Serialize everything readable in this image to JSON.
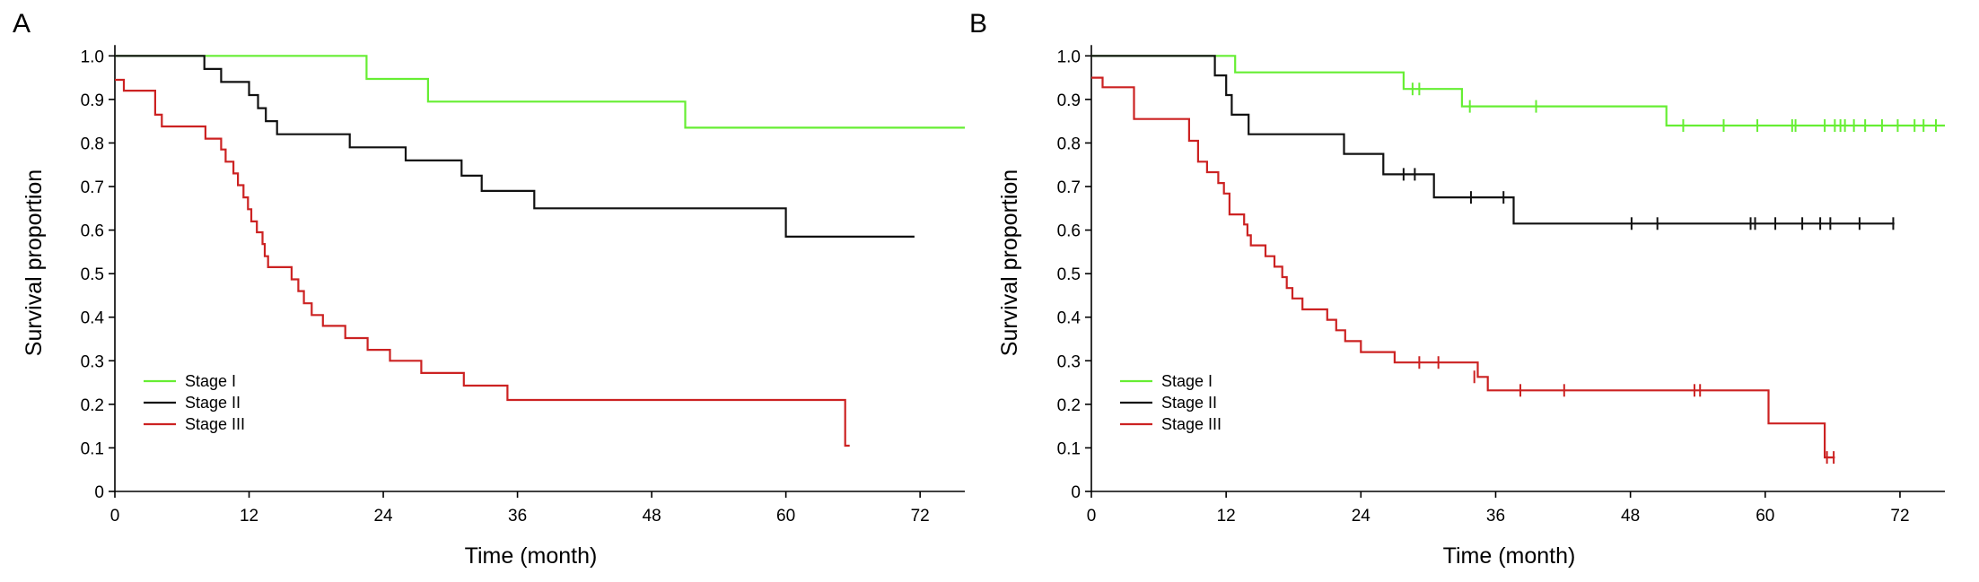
{
  "chart_data": [
    {
      "panel": "A",
      "type": "line",
      "title": "",
      "xlabel": "Time (month)",
      "ylabel": "Survival proportion",
      "xlim": [
        0,
        76
      ],
      "ylim": [
        0,
        1.05
      ],
      "xticks": [
        0,
        12,
        24,
        36,
        48,
        60,
        72
      ],
      "yticks": [
        0,
        0.1,
        0.2,
        0.3,
        0.4,
        0.5,
        0.6,
        0.7,
        0.8,
        0.9,
        1.0
      ],
      "ytick_labels": [
        "0",
        "0.1",
        "0.2",
        "0.3",
        "0.4",
        "0.5",
        "0.6",
        "0.7",
        "0.8",
        "0.9",
        "1.0"
      ],
      "grid": false,
      "legend_position": "bottom-left",
      "series": [
        {
          "name": "Stage I",
          "color": "#66ee33",
          "points": [
            [
              0,
              1.0
            ],
            [
              22.5,
              0.947
            ],
            [
              28,
              0.895
            ],
            [
              51,
              0.835
            ],
            [
              76,
              0.835
            ]
          ],
          "censored": []
        },
        {
          "name": "Stage II",
          "color": "#111111",
          "points": [
            [
              0,
              1.0
            ],
            [
              8,
              0.97
            ],
            [
              9.5,
              0.94
            ],
            [
              12,
              0.91
            ],
            [
              12.8,
              0.88
            ],
            [
              13.5,
              0.85
            ],
            [
              14.5,
              0.82
            ],
            [
              21,
              0.79
            ],
            [
              26,
              0.76
            ],
            [
              31,
              0.725
            ],
            [
              32.8,
              0.69
            ],
            [
              37.5,
              0.65
            ],
            [
              60,
              0.585
            ],
            [
              71.5,
              0.585
            ]
          ],
          "censored": []
        },
        {
          "name": "Stage III",
          "color": "#cc2222",
          "points": [
            [
              0,
              0.945
            ],
            [
              0.8,
              0.92
            ],
            [
              3.6,
              0.865
            ],
            [
              4.2,
              0.838
            ],
            [
              8.1,
              0.81
            ],
            [
              9.5,
              0.785
            ],
            [
              9.9,
              0.757
            ],
            [
              10.6,
              0.73
            ],
            [
              11,
              0.703
            ],
            [
              11.5,
              0.675
            ],
            [
              11.9,
              0.648
            ],
            [
              12.2,
              0.62
            ],
            [
              12.7,
              0.595
            ],
            [
              13.2,
              0.568
            ],
            [
              13.4,
              0.54
            ],
            [
              13.7,
              0.515
            ],
            [
              15.8,
              0.487
            ],
            [
              16.4,
              0.46
            ],
            [
              16.9,
              0.432
            ],
            [
              17.6,
              0.405
            ],
            [
              18.6,
              0.38
            ],
            [
              20.6,
              0.352
            ],
            [
              22.6,
              0.325
            ],
            [
              24.6,
              0.3
            ],
            [
              27.4,
              0.272
            ],
            [
              31.2,
              0.243
            ],
            [
              35.1,
              0.21
            ],
            [
              65.3,
              0.105
            ],
            [
              65.7,
              0.105
            ]
          ],
          "censored": []
        }
      ],
      "legend": [
        "Stage I",
        "Stage II",
        "Stage III"
      ]
    },
    {
      "panel": "B",
      "type": "line",
      "title": "",
      "xlabel": "Time (month)",
      "ylabel": "Survival proportion",
      "xlim": [
        0,
        76
      ],
      "ylim": [
        0,
        1.05
      ],
      "xticks": [
        0,
        12,
        24,
        36,
        48,
        60,
        72
      ],
      "yticks": [
        0,
        0.1,
        0.2,
        0.3,
        0.4,
        0.5,
        0.6,
        0.7,
        0.8,
        0.9,
        1.0
      ],
      "ytick_labels": [
        "0",
        "0.1",
        "0.2",
        "0.3",
        "0.4",
        "0.5",
        "0.6",
        "0.7",
        "0.8",
        "0.9",
        "1.0"
      ],
      "grid": false,
      "legend_position": "bottom-left",
      "series": [
        {
          "name": "Stage I",
          "color": "#66ee33",
          "points": [
            [
              0,
              1.0
            ],
            [
              12.8,
              0.962
            ],
            [
              27.8,
              0.924
            ],
            [
              33,
              0.884
            ],
            [
              51.2,
              0.84
            ],
            [
              76,
              0.84
            ]
          ],
          "censored": [
            [
              28.6,
              0.924
            ],
            [
              29.2,
              0.924
            ],
            [
              33.7,
              0.884
            ],
            [
              39.6,
              0.884
            ],
            [
              52.7,
              0.84
            ],
            [
              56.3,
              0.84
            ],
            [
              59.3,
              0.84
            ],
            [
              62.4,
              0.84
            ],
            [
              62.7,
              0.84
            ],
            [
              65.3,
              0.84
            ],
            [
              66.2,
              0.84
            ],
            [
              66.7,
              0.84
            ],
            [
              67.1,
              0.84
            ],
            [
              67.9,
              0.84
            ],
            [
              68.9,
              0.84
            ],
            [
              70.4,
              0.84
            ],
            [
              71.8,
              0.84
            ],
            [
              73.3,
              0.84
            ],
            [
              74.1,
              0.84
            ],
            [
              75.2,
              0.84
            ]
          ]
        },
        {
          "name": "Stage II",
          "color": "#111111",
          "points": [
            [
              0,
              1.0
            ],
            [
              11,
              0.955
            ],
            [
              12,
              0.91
            ],
            [
              12.5,
              0.865
            ],
            [
              14,
              0.82
            ],
            [
              22.5,
              0.775
            ],
            [
              26,
              0.728
            ],
            [
              30.5,
              0.675
            ],
            [
              37.6,
              0.615
            ],
            [
              71.5,
              0.615
            ]
          ],
          "censored": [
            [
              27.8,
              0.728
            ],
            [
              28.8,
              0.728
            ],
            [
              33.8,
              0.675
            ],
            [
              36.7,
              0.675
            ],
            [
              48.1,
              0.615
            ],
            [
              50.4,
              0.615
            ],
            [
              58.7,
              0.615
            ],
            [
              59.1,
              0.615
            ],
            [
              60.9,
              0.615
            ],
            [
              63.3,
              0.615
            ],
            [
              64.9,
              0.615
            ],
            [
              65.8,
              0.615
            ],
            [
              68.4,
              0.615
            ],
            [
              71.4,
              0.615
            ]
          ]
        },
        {
          "name": "Stage III",
          "color": "#cc2222",
          "points": [
            [
              0,
              0.95
            ],
            [
              1,
              0.928
            ],
            [
              3.8,
              0.855
            ],
            [
              8.7,
              0.805
            ],
            [
              9.5,
              0.757
            ],
            [
              10.3,
              0.733
            ],
            [
              11.3,
              0.708
            ],
            [
              11.8,
              0.684
            ],
            [
              12.3,
              0.636
            ],
            [
              13.6,
              0.613
            ],
            [
              13.9,
              0.588
            ],
            [
              14.2,
              0.565
            ],
            [
              15.5,
              0.54
            ],
            [
              16.3,
              0.516
            ],
            [
              17,
              0.492
            ],
            [
              17.4,
              0.467
            ],
            [
              17.9,
              0.443
            ],
            [
              18.8,
              0.418
            ],
            [
              21,
              0.394
            ],
            [
              21.8,
              0.37
            ],
            [
              22.6,
              0.345
            ],
            [
              24,
              0.32
            ],
            [
              27,
              0.296
            ],
            [
              34.4,
              0.263
            ],
            [
              35.3,
              0.232
            ],
            [
              60.3,
              0.156
            ],
            [
              65.3,
              0.078
            ],
            [
              66.2,
              0.078
            ]
          ],
          "censored": [
            [
              29.2,
              0.296
            ],
            [
              30.9,
              0.296
            ],
            [
              34.1,
              0.263
            ],
            [
              38.2,
              0.232
            ],
            [
              42.1,
              0.232
            ],
            [
              53.7,
              0.232
            ],
            [
              54.2,
              0.232
            ],
            [
              65.5,
              0.078
            ],
            [
              66.1,
              0.078
            ]
          ]
        }
      ],
      "legend": [
        "Stage I",
        "Stage II",
        "Stage III"
      ]
    }
  ]
}
